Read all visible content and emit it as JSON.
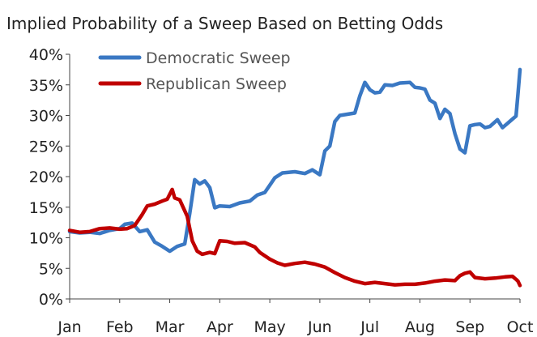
{
  "chart_data": {
    "type": "line",
    "title": "Implied Probability of a Sweep Based on Betting Odds",
    "xlabel": "",
    "ylabel": "",
    "x_tick_labels": [
      "Jan",
      "Feb",
      "Mar",
      "Apr",
      "May",
      "Jun",
      "Jul",
      "Aug",
      "Sep",
      "Oct"
    ],
    "y_tick_labels": [
      "0%",
      "5%",
      "10%",
      "15%",
      "20%",
      "25%",
      "30%",
      "35%",
      "40%"
    ],
    "ylim": [
      0,
      40
    ],
    "xlim": [
      0,
      9
    ],
    "grid": false,
    "legend_position": "top-left",
    "series": [
      {
        "name": "Democratic Sweep",
        "color": "#3a78c3",
        "points": [
          [
            0.0,
            11.0
          ],
          [
            0.2,
            10.8
          ],
          [
            0.4,
            10.9
          ],
          [
            0.6,
            10.7
          ],
          [
            0.8,
            11.2
          ],
          [
            1.0,
            11.5
          ],
          [
            1.1,
            12.2
          ],
          [
            1.25,
            12.4
          ],
          [
            1.4,
            11.0
          ],
          [
            1.55,
            11.3
          ],
          [
            1.7,
            9.3
          ],
          [
            1.85,
            8.6
          ],
          [
            2.0,
            7.8
          ],
          [
            2.15,
            8.6
          ],
          [
            2.3,
            9.0
          ],
          [
            2.4,
            14.0
          ],
          [
            2.5,
            19.5
          ],
          [
            2.6,
            18.8
          ],
          [
            2.7,
            19.3
          ],
          [
            2.8,
            18.2
          ],
          [
            2.9,
            14.9
          ],
          [
            3.0,
            15.2
          ],
          [
            3.2,
            15.1
          ],
          [
            3.4,
            15.7
          ],
          [
            3.6,
            16.0
          ],
          [
            3.75,
            17.0
          ],
          [
            3.9,
            17.4
          ],
          [
            4.0,
            18.6
          ],
          [
            4.1,
            19.8
          ],
          [
            4.25,
            20.6
          ],
          [
            4.5,
            20.8
          ],
          [
            4.7,
            20.5
          ],
          [
            4.85,
            21.1
          ],
          [
            5.0,
            20.3
          ],
          [
            5.1,
            24.2
          ],
          [
            5.2,
            25.0
          ],
          [
            5.3,
            29.0
          ],
          [
            5.4,
            30.0
          ],
          [
            5.55,
            30.2
          ],
          [
            5.7,
            30.4
          ],
          [
            5.8,
            33.2
          ],
          [
            5.9,
            35.4
          ],
          [
            6.0,
            34.2
          ],
          [
            6.1,
            33.7
          ],
          [
            6.2,
            33.8
          ],
          [
            6.3,
            35.0
          ],
          [
            6.45,
            34.9
          ],
          [
            6.6,
            35.3
          ],
          [
            6.8,
            35.4
          ],
          [
            6.9,
            34.6
          ],
          [
            7.0,
            34.5
          ],
          [
            7.1,
            34.3
          ],
          [
            7.2,
            32.5
          ],
          [
            7.3,
            32.0
          ],
          [
            7.4,
            29.5
          ],
          [
            7.5,
            31.0
          ],
          [
            7.6,
            30.3
          ],
          [
            7.7,
            27.0
          ],
          [
            7.8,
            24.5
          ],
          [
            7.9,
            23.9
          ],
          [
            8.0,
            28.3
          ],
          [
            8.1,
            28.5
          ],
          [
            8.2,
            28.6
          ],
          [
            8.3,
            28.0
          ],
          [
            8.4,
            28.2
          ],
          [
            8.55,
            29.3
          ],
          [
            8.65,
            28.0
          ],
          [
            8.75,
            28.7
          ],
          [
            8.85,
            29.4
          ],
          [
            8.92,
            29.9
          ],
          [
            8.96,
            33.5
          ],
          [
            9.0,
            37.5
          ]
        ]
      },
      {
        "name": "Republican Sweep",
        "color": "#c00000",
        "points": [
          [
            0.0,
            11.2
          ],
          [
            0.2,
            10.9
          ],
          [
            0.4,
            11.0
          ],
          [
            0.6,
            11.5
          ],
          [
            0.8,
            11.6
          ],
          [
            1.0,
            11.4
          ],
          [
            1.15,
            11.5
          ],
          [
            1.3,
            12.0
          ],
          [
            1.45,
            13.8
          ],
          [
            1.55,
            15.2
          ],
          [
            1.7,
            15.5
          ],
          [
            1.85,
            16.0
          ],
          [
            1.95,
            16.3
          ],
          [
            2.05,
            17.9
          ],
          [
            2.1,
            16.5
          ],
          [
            2.2,
            16.2
          ],
          [
            2.35,
            13.5
          ],
          [
            2.45,
            9.5
          ],
          [
            2.55,
            7.8
          ],
          [
            2.65,
            7.3
          ],
          [
            2.8,
            7.6
          ],
          [
            2.9,
            7.4
          ],
          [
            3.0,
            9.5
          ],
          [
            3.15,
            9.4
          ],
          [
            3.3,
            9.1
          ],
          [
            3.5,
            9.2
          ],
          [
            3.7,
            8.5
          ],
          [
            3.8,
            7.6
          ],
          [
            4.0,
            6.5
          ],
          [
            4.15,
            5.9
          ],
          [
            4.3,
            5.5
          ],
          [
            4.5,
            5.8
          ],
          [
            4.7,
            6.0
          ],
          [
            4.9,
            5.7
          ],
          [
            5.1,
            5.2
          ],
          [
            5.3,
            4.3
          ],
          [
            5.5,
            3.5
          ],
          [
            5.7,
            2.9
          ],
          [
            5.9,
            2.5
          ],
          [
            6.1,
            2.7
          ],
          [
            6.3,
            2.5
          ],
          [
            6.5,
            2.3
          ],
          [
            6.7,
            2.4
          ],
          [
            6.9,
            2.4
          ],
          [
            7.1,
            2.6
          ],
          [
            7.3,
            2.9
          ],
          [
            7.5,
            3.1
          ],
          [
            7.7,
            3.0
          ],
          [
            7.8,
            3.8
          ],
          [
            7.9,
            4.2
          ],
          [
            8.0,
            4.4
          ],
          [
            8.1,
            3.5
          ],
          [
            8.3,
            3.3
          ],
          [
            8.5,
            3.4
          ],
          [
            8.7,
            3.6
          ],
          [
            8.85,
            3.7
          ],
          [
            8.92,
            3.2
          ],
          [
            8.96,
            2.9
          ],
          [
            9.0,
            2.2
          ]
        ]
      }
    ]
  }
}
